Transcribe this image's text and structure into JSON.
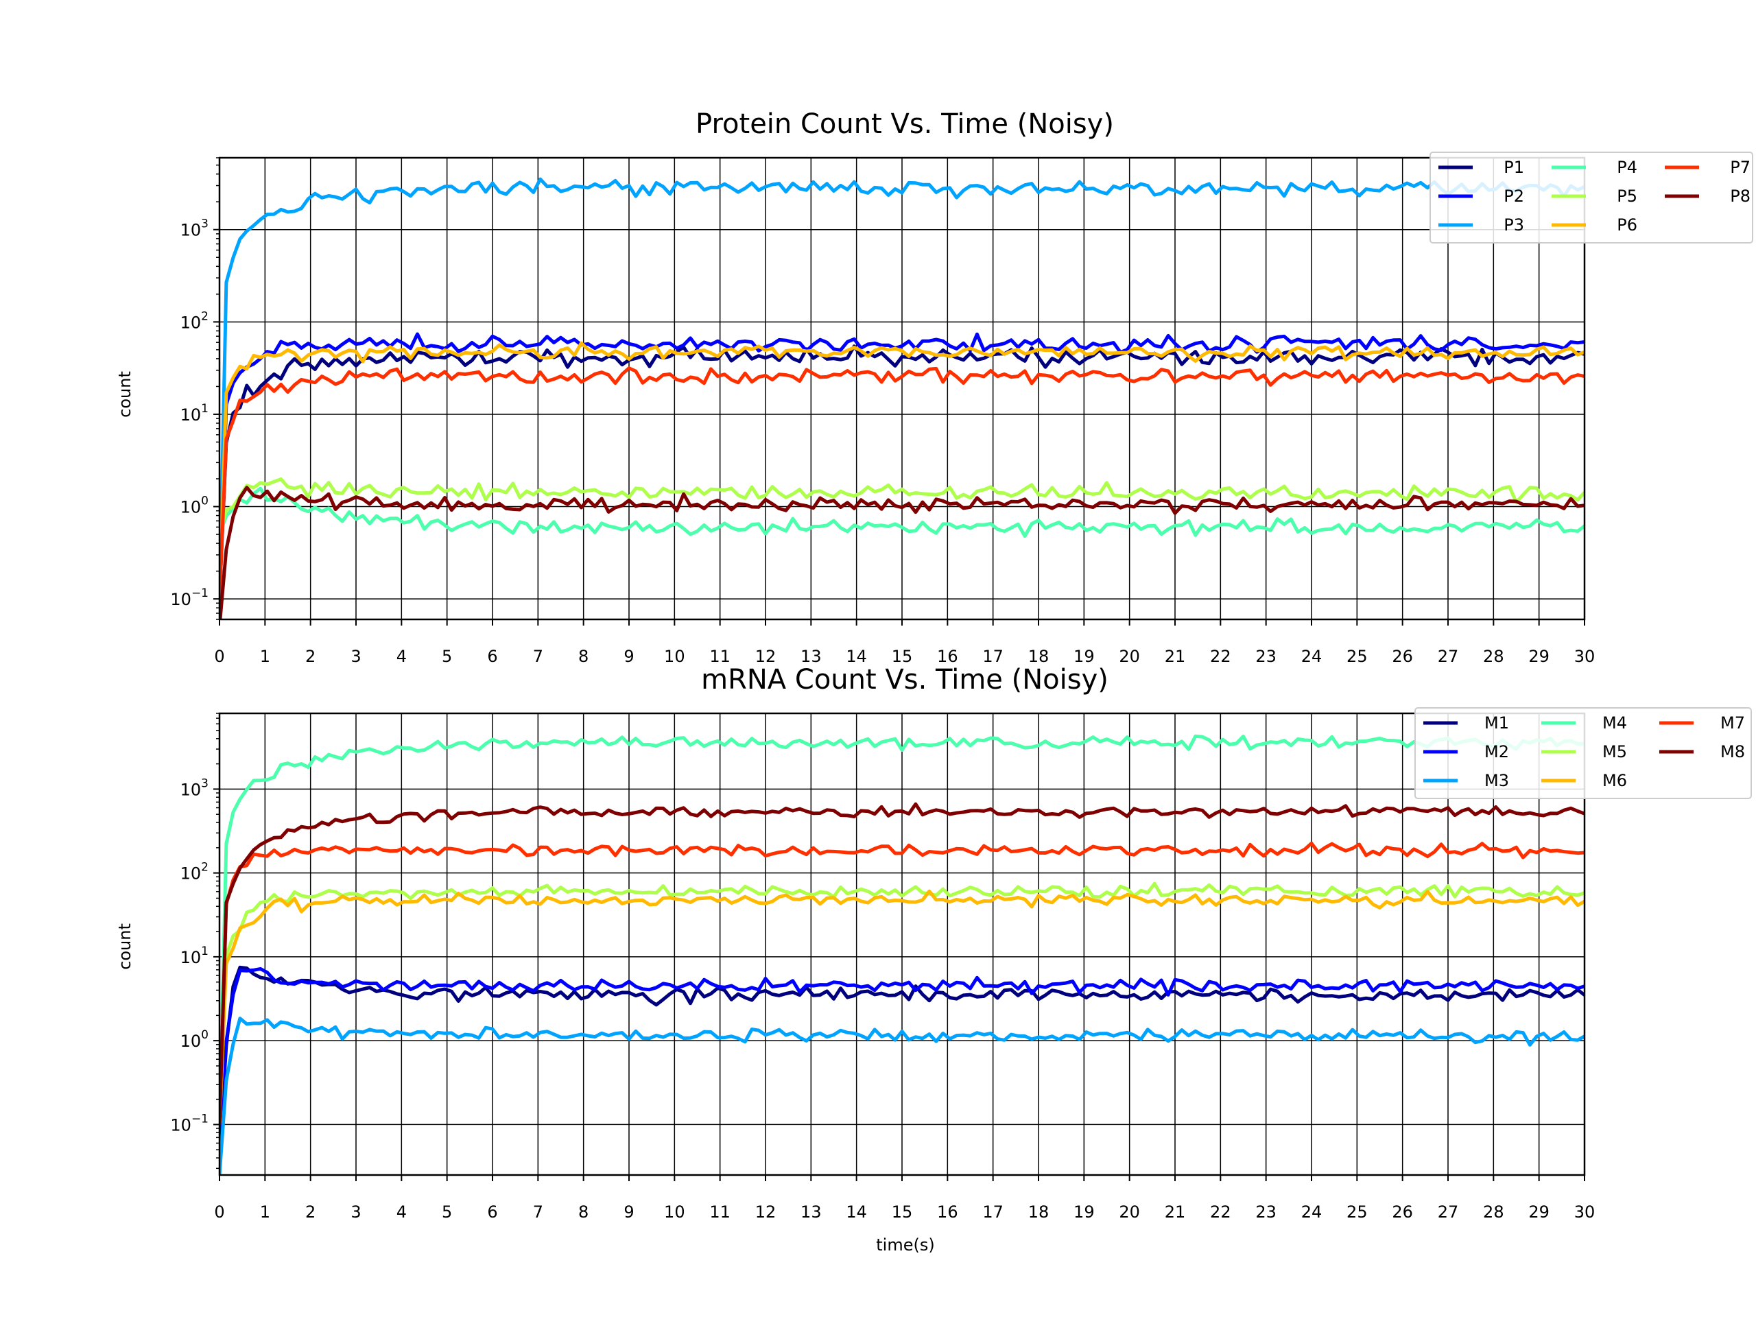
{
  "chart_data": [
    {
      "type": "line",
      "title": "Protein Count Vs. Time (Noisy)",
      "xlabel": "",
      "ylabel": "count",
      "xlim": [
        0,
        30
      ],
      "ylim": [
        0.06,
        6000
      ],
      "yscale": "log",
      "grid": true,
      "x_ticks": [
        "0",
        "1",
        "2",
        "3",
        "4",
        "5",
        "6",
        "7",
        "8",
        "9",
        "10",
        "11",
        "12",
        "13",
        "14",
        "15",
        "16",
        "17",
        "18",
        "19",
        "20",
        "21",
        "22",
        "23",
        "24",
        "25",
        "26",
        "27",
        "28",
        "29",
        "30"
      ],
      "y_ticks": [
        {
          "base": "10",
          "exp": "−1",
          "value": 0.1
        },
        {
          "base": "10",
          "exp": "0",
          "value": 1
        },
        {
          "base": "10",
          "exp": "1",
          "value": 10
        },
        {
          "base": "10",
          "exp": "2",
          "value": 100
        },
        {
          "base": "10",
          "exp": "3",
          "value": 1000
        }
      ],
      "legend_position": "top-right",
      "legend_columns": 3,
      "series": [
        {
          "name": "P1",
          "color": "#00007f",
          "start": 0.1,
          "steady": 42,
          "tau": 1.2,
          "noise": 0.09
        },
        {
          "name": "P2",
          "color": "#0000ff",
          "start": 0.1,
          "steady": 58,
          "tau": 0.6,
          "noise": 0.08
        },
        {
          "name": "P3",
          "color": "#00a4ff",
          "start": 0.1,
          "steady": 2800,
          "tau": 1.5,
          "noise": 0.08
        },
        {
          "name": "P4",
          "color": "#4bffad",
          "start": 0.5,
          "peak": 1.4,
          "peak_t": 0.8,
          "steady": 0.6,
          "noise": 0.08
        },
        {
          "name": "P5",
          "color": "#adff4b",
          "start": 0.5,
          "peak": 1.9,
          "peak_t": 0.8,
          "steady": 1.4,
          "noise": 0.08
        },
        {
          "name": "P6",
          "color": "#ffb900",
          "start": 0.1,
          "steady": 47,
          "tau": 0.35,
          "noise": 0.07
        },
        {
          "name": "P7",
          "color": "#ff3000",
          "start": 0.1,
          "steady": 26,
          "tau": 0.7,
          "noise": 0.08
        },
        {
          "name": "P8",
          "color": "#7f0000",
          "start": 0.05,
          "peak": 1.5,
          "peak_t": 0.5,
          "steady": 1.05,
          "noise": 0.08
        }
      ]
    },
    {
      "type": "line",
      "title": "mRNA Count Vs. Time (Noisy)",
      "xlabel": "time(s)",
      "ylabel": "count",
      "xlim": [
        0,
        30
      ],
      "ylim": [
        0.025,
        8000
      ],
      "yscale": "log",
      "grid": true,
      "x_ticks": [
        "0",
        "1",
        "2",
        "3",
        "4",
        "5",
        "6",
        "7",
        "8",
        "9",
        "10",
        "11",
        "12",
        "13",
        "14",
        "15",
        "16",
        "17",
        "18",
        "19",
        "20",
        "21",
        "22",
        "23",
        "24",
        "25",
        "26",
        "27",
        "28",
        "29",
        "30"
      ],
      "y_ticks": [
        {
          "base": "10",
          "exp": "−1",
          "value": 0.1
        },
        {
          "base": "10",
          "exp": "0",
          "value": 1
        },
        {
          "base": "10",
          "exp": "1",
          "value": 10
        },
        {
          "base": "10",
          "exp": "2",
          "value": 100
        },
        {
          "base": "10",
          "exp": "3",
          "value": 1000
        }
      ],
      "legend_position": "top-right",
      "legend_columns": 3,
      "series": [
        {
          "name": "M1",
          "color": "#00007f",
          "start": 0.05,
          "peak": 7.5,
          "peak_t": 0.4,
          "steady": 3.5,
          "noise": 0.08
        },
        {
          "name": "M2",
          "color": "#0000ff",
          "start": 0.05,
          "peak": 6.8,
          "peak_t": 0.4,
          "steady": 4.5,
          "noise": 0.07
        },
        {
          "name": "M3",
          "color": "#00a4ff",
          "start": 0.025,
          "peak": 1.8,
          "peak_t": 0.4,
          "steady": 1.15,
          "noise": 0.07
        },
        {
          "name": "M4",
          "color": "#4bffad",
          "start": 0.1,
          "steady": 3600,
          "tau": 2.0,
          "noise": 0.07
        },
        {
          "name": "M5",
          "color": "#adff4b",
          "start": 0.1,
          "steady": 60,
          "tau": 0.8,
          "noise": 0.07
        },
        {
          "name": "M6",
          "color": "#ffb900",
          "start": 0.1,
          "steady": 48,
          "tau": 0.8,
          "noise": 0.07
        },
        {
          "name": "M7",
          "color": "#ff3000",
          "start": 0.1,
          "steady": 185,
          "tau": 0.5,
          "noise": 0.07
        },
        {
          "name": "M8",
          "color": "#7f0000",
          "start": 0.1,
          "steady": 540,
          "tau": 1.8,
          "noise": 0.06
        }
      ]
    }
  ]
}
